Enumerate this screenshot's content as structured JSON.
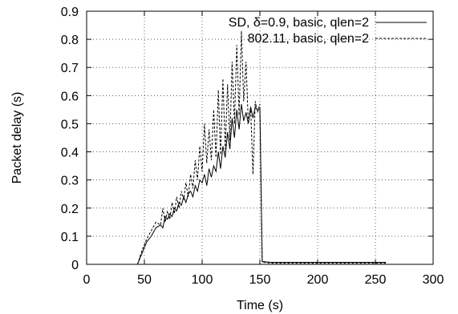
{
  "chart_data": {
    "type": "line",
    "xlabel": "Time (s)",
    "ylabel": "Packet delay (s)",
    "xlim": [
      0,
      300
    ],
    "ylim": [
      0,
      0.9
    ],
    "xticks": [
      0,
      50,
      100,
      150,
      200,
      250,
      300
    ],
    "yticks": [
      0,
      0.1,
      0.2,
      0.3,
      0.4,
      0.5,
      0.6,
      0.7,
      0.8,
      0.9
    ],
    "xtick_labels": [
      "0",
      "50",
      "100",
      "150",
      "200",
      "250",
      "300"
    ],
    "ytick_labels": [
      "0",
      "0.1",
      "0.2",
      "0.3",
      "0.4",
      "0.5",
      "0.6",
      "0.7",
      "0.8",
      "0.9"
    ],
    "grid": true,
    "legend_position": "top-right",
    "series": [
      {
        "name": "SD, δ=0.9, basic, qlen=2",
        "style": "solid",
        "color": "#000000",
        "x": [
          44,
          48,
          52,
          56,
          60,
          64,
          66,
          68,
          70,
          72,
          74,
          76,
          78,
          80,
          82,
          84,
          86,
          88,
          90,
          92,
          94,
          96,
          98,
          100,
          102,
          104,
          106,
          108,
          110,
          112,
          114,
          116,
          118,
          120,
          122,
          124,
          126,
          128,
          130,
          132,
          134,
          136,
          138,
          140,
          142,
          144,
          146,
          148,
          150,
          152,
          160,
          180,
          200,
          220,
          240,
          259
        ],
        "y": [
          0.0,
          0.04,
          0.08,
          0.1,
          0.13,
          0.14,
          0.13,
          0.17,
          0.16,
          0.18,
          0.17,
          0.2,
          0.19,
          0.22,
          0.21,
          0.24,
          0.22,
          0.25,
          0.26,
          0.24,
          0.28,
          0.26,
          0.3,
          0.29,
          0.32,
          0.28,
          0.34,
          0.31,
          0.35,
          0.33,
          0.4,
          0.34,
          0.42,
          0.38,
          0.47,
          0.41,
          0.52,
          0.45,
          0.55,
          0.48,
          0.57,
          0.51,
          0.54,
          0.5,
          0.56,
          0.52,
          0.56,
          0.55,
          0.55,
          0.01,
          0.007,
          0.007,
          0.007,
          0.007,
          0.007,
          0.007
        ]
      },
      {
        "name": "802.11, basic, qlen=2",
        "style": "dashed",
        "color": "#000000",
        "x": [
          44,
          48,
          52,
          56,
          60,
          64,
          66,
          68,
          70,
          72,
          74,
          76,
          78,
          80,
          82,
          84,
          86,
          88,
          90,
          92,
          94,
          96,
          98,
          100,
          102,
          104,
          106,
          108,
          110,
          112,
          114,
          116,
          118,
          120,
          122,
          124,
          126,
          128,
          130,
          132,
          134,
          136,
          138,
          140,
          142,
          144,
          146,
          148,
          150,
          152,
          160,
          180,
          200,
          220,
          240,
          259
        ],
        "y": [
          0.0,
          0.05,
          0.09,
          0.12,
          0.15,
          0.14,
          0.2,
          0.15,
          0.19,
          0.16,
          0.22,
          0.18,
          0.24,
          0.2,
          0.26,
          0.23,
          0.29,
          0.24,
          0.32,
          0.27,
          0.37,
          0.3,
          0.42,
          0.33,
          0.5,
          0.36,
          0.48,
          0.37,
          0.55,
          0.38,
          0.62,
          0.39,
          0.66,
          0.41,
          0.64,
          0.44,
          0.72,
          0.5,
          0.78,
          0.53,
          0.83,
          0.58,
          0.72,
          0.5,
          0.56,
          0.32,
          0.58,
          0.54,
          0.57,
          0.008,
          0.004,
          0.004,
          0.004,
          0.004,
          0.004,
          0.004
        ]
      }
    ]
  }
}
